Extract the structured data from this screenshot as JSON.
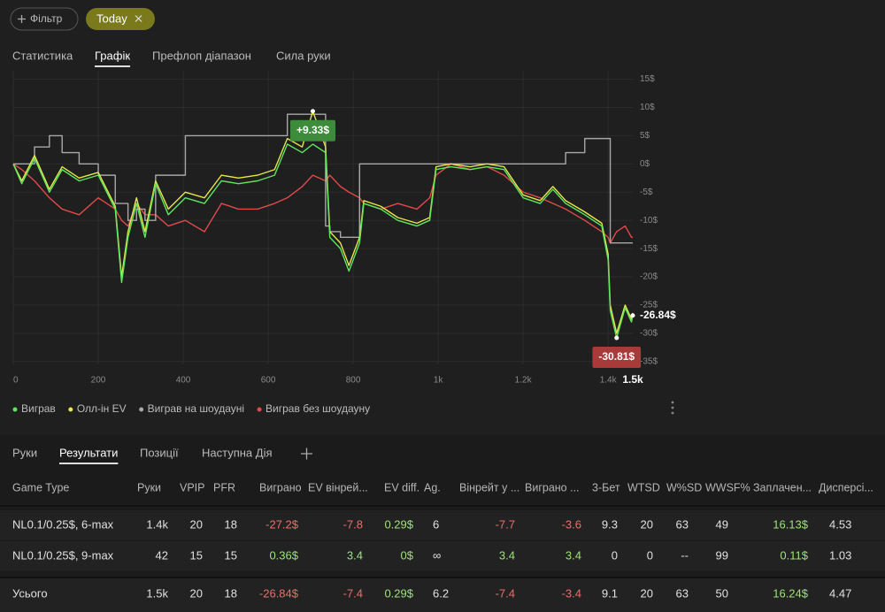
{
  "filters": {
    "add": "Фільтр",
    "active": "Today"
  },
  "tabs": [
    "Статистика",
    "Графік",
    "Префлоп діапазон",
    "Сила руки"
  ],
  "active_tab": 1,
  "chart_data": {
    "type": "line",
    "x": [
      0,
      20,
      50,
      85,
      115,
      155,
      200,
      240,
      255,
      270,
      290,
      310,
      335,
      365,
      405,
      450,
      490,
      530,
      575,
      615,
      645,
      680,
      705,
      735,
      745,
      770,
      790,
      815,
      825,
      865,
      905,
      950,
      980,
      995,
      1030,
      1075,
      1115,
      1155,
      1200,
      1240,
      1270,
      1300,
      1345,
      1385,
      1400,
      1405,
      1420,
      1440,
      1455,
      1458
    ],
    "series": [
      {
        "name": "Виграв",
        "color": "#5ee65e",
        "values": [
          0,
          -3.5,
          1,
          -5,
          -1,
          -3,
          -2,
          -8,
          -21,
          -13,
          -7,
          -13,
          -3.5,
          -9,
          -6,
          -7,
          -3,
          -3.5,
          -3,
          -2,
          3.5,
          2,
          3.5,
          2,
          -13,
          -15,
          -19,
          -14,
          -7,
          -8,
          -10,
          -11,
          -10,
          -1,
          -0.5,
          -1,
          -0.5,
          -1,
          -6,
          -7,
          -4.5,
          -7,
          -9,
          -11,
          -17,
          -26,
          -30.81,
          -25.5,
          -28,
          -26.84
        ]
      },
      {
        "name": "Олл-ін EV",
        "color": "#e6e64a",
        "values": [
          0,
          -3,
          1.5,
          -4.5,
          -0.5,
          -2.5,
          -1.5,
          -7.5,
          -20,
          -12,
          -6,
          -12,
          -3,
          -8,
          -5,
          -6,
          -2,
          -2.5,
          -2,
          -1,
          4.5,
          3,
          9.33,
          3,
          -12,
          -14,
          -18,
          -13,
          -6.5,
          -7.5,
          -9.5,
          -10.5,
          -9.5,
          -0.5,
          0,
          -0.5,
          0,
          -0.5,
          -5.5,
          -6.5,
          -4,
          -6.5,
          -8.5,
          -10.5,
          -16,
          -25,
          -30,
          -25,
          -27.5,
          -26.4
        ]
      },
      {
        "name": "Виграв на шоудауні",
        "color": "#a8a8a8",
        "step": true,
        "values": [
          0,
          0,
          3,
          5,
          2,
          0,
          -2,
          -7,
          -7,
          -10,
          -8,
          -10,
          -2,
          -2,
          5,
          5,
          5,
          5,
          5,
          5,
          8.8,
          8.8,
          8.8,
          -11,
          -12,
          -13,
          -13,
          0,
          0,
          0,
          0,
          0,
          0,
          0,
          0,
          0,
          0,
          0,
          0,
          0,
          0,
          2,
          4.5,
          4.5,
          4.5,
          -14,
          -14,
          -14,
          -14,
          -14
        ]
      },
      {
        "name": "Виграв без шоудауну",
        "color": "#e04a4a",
        "values": [
          0,
          -1,
          -3,
          -6,
          -8,
          -9,
          -6,
          -8,
          -10,
          -11,
          -7,
          -9,
          -9,
          -11,
          -10,
          -12,
          -7,
          -8,
          -8,
          -7,
          -6,
          -4,
          -2,
          -3,
          -2,
          -4,
          -5,
          -6,
          -7,
          -8,
          -7,
          -8,
          -6,
          -2,
          0,
          -1,
          -0.5,
          -2,
          -5,
          -6,
          -7,
          -8,
          -10,
          -12,
          -13,
          -14,
          -12,
          -11,
          -13,
          -13
        ]
      }
    ],
    "xlim": [
      0,
      1458
    ],
    "xticks": [
      0,
      200,
      400,
      600,
      800,
      {
        "value": 1000,
        "label": "1k"
      },
      {
        "value": 1200,
        "label": "1.2k"
      },
      {
        "value": 1400,
        "label": "1.4k"
      }
    ],
    "x_total": {
      "value": 1458,
      "label": "1.5k"
    },
    "ylim": [
      -35.5,
      16.5
    ],
    "yticks": [
      {
        "value": 15,
        "label": "15$"
      },
      {
        "value": 10,
        "label": "10$"
      },
      {
        "value": 5,
        "label": "5$"
      },
      {
        "value": 0,
        "label": "0$"
      },
      {
        "value": -5,
        "label": "-5$"
      },
      {
        "value": -10,
        "label": "-10$"
      },
      {
        "value": -15,
        "label": "-15$"
      },
      {
        "value": -20,
        "label": "-20$"
      },
      {
        "value": -25,
        "label": "-25$"
      },
      {
        "value": -30,
        "label": "-30$"
      },
      {
        "value": -35,
        "label": "-35$"
      }
    ],
    "grid": true,
    "annotations": [
      {
        "text": "+9.33$",
        "x": 705,
        "y": 9.33,
        "color": "#3c8c3c",
        "placement": "below"
      },
      {
        "text": "-30.81$",
        "x": 1420,
        "y": -30.81,
        "color": "#a83a3a",
        "placement": "below"
      },
      {
        "text": "-26.84$",
        "x": 1458,
        "y": -26.84,
        "placement": "right"
      }
    ]
  },
  "bottom_tabs": [
    "Руки",
    "Результати",
    "Позиції",
    "Наступна Дія"
  ],
  "active_bottom_tab": 1,
  "table": {
    "columns": [
      "Game Type",
      "Руки",
      "VPIP",
      "PFR",
      "Виграно",
      "EV вінрей...",
      "EV diff.",
      "Ag.",
      "Вінрейт у ...",
      "Виграно ...",
      "3-Бет",
      "WTSD",
      "W%SD",
      "WWSF%",
      "Заплачен...",
      "Дисперсі..."
    ],
    "colored_columns": [
      4,
      5,
      6,
      8,
      9,
      14
    ],
    "rows": [
      [
        "NL0.1/0.25$, 6-max",
        "1.4k",
        "20",
        "18",
        "-27.2$",
        "-7.8",
        "0.29$",
        "6",
        "-7.7",
        "-3.6",
        "9.3",
        "20",
        "63",
        "49",
        "16.13$",
        "4.53"
      ],
      [
        "NL0.1/0.25$, 9-max",
        "42",
        "15",
        "15",
        "0.36$",
        "3.4",
        "0$",
        "∞",
        "3.4",
        "3.4",
        "0",
        "0",
        "--",
        "99",
        "0.11$",
        "1.03"
      ]
    ],
    "total": [
      "Усього",
      "1.5k",
      "20",
      "18",
      "-26.84$",
      "-7.4",
      "0.29$",
      "6.2",
      "-7.4",
      "-3.4",
      "9.1",
      "20",
      "63",
      "50",
      "16.24$",
      "4.47"
    ]
  }
}
